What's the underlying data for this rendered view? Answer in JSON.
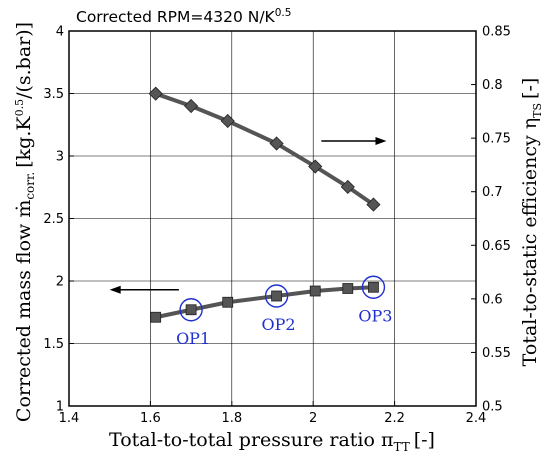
{
  "chart_data": {
    "type": "line",
    "title": "Corrected RPM=4320 N/K",
    "title_superscript": "0.5",
    "xlabel": "Total-to-total pressure ratio π",
    "xlabel_subscript": "TT",
    "xlabel_unit": "[-]",
    "ylabel_left": "Corrected mass flow ṁ",
    "ylabel_left_subscript": "corr.",
    "ylabel_left_unit_a": "[kg.K",
    "ylabel_left_unit_sup": "0.5",
    "ylabel_left_unit_b": "/(s.bar)",
    "ylabel_left_unit_c": "]",
    "ylabel_right": "Total-to-static efficiency η",
    "ylabel_right_subscript": "TS",
    "ylabel_right_unit": "[-]",
    "xlim": [
      1.4,
      2.4
    ],
    "ylim_left": [
      1,
      4
    ],
    "ylim_right": [
      0.5,
      0.85
    ],
    "x_ticks": [
      "1.4",
      "1.6",
      "1.8",
      "2",
      "2.2",
      "2.4"
    ],
    "y_left_ticks": [
      "1",
      "1.5",
      "2",
      "2.5",
      "3",
      "3.5",
      "4"
    ],
    "y_right_ticks": [
      "0.5",
      "0.55",
      "0.6",
      "0.65",
      "0.7",
      "0.75",
      "0.8",
      "0.85"
    ],
    "grid": true,
    "series": [
      {
        "axis": "left",
        "marker": "square",
        "color": "#555555",
        "x": [
          1.613,
          1.7,
          1.79,
          1.91,
          2.005,
          2.085,
          2.148
        ],
        "y": [
          1.71,
          1.77,
          1.83,
          1.88,
          1.92,
          1.94,
          1.95
        ]
      },
      {
        "axis": "right",
        "marker": "diamond",
        "color": "#555555",
        "x": [
          1.613,
          1.7,
          1.79,
          1.91,
          2.005,
          2.085,
          2.148
        ],
        "y": [
          0.7915,
          0.78,
          0.766,
          0.745,
          0.7235,
          0.7045,
          0.688
        ]
      }
    ],
    "annotations": [
      {
        "label": "OP1",
        "x": 1.7,
        "y": 1.77,
        "color": "#1f2fd0"
      },
      {
        "label": "OP2",
        "x": 1.91,
        "y": 1.88,
        "color": "#1f2fd0"
      },
      {
        "label": "OP3",
        "x": 2.148,
        "y": 1.95,
        "color": "#1f2fd0"
      }
    ],
    "arrows": [
      {
        "direction": "left",
        "axis": "left",
        "x_from": 1.67,
        "x_to": 1.5,
        "y": 1.93
      },
      {
        "direction": "right",
        "axis": "left",
        "x_from": 2.02,
        "x_to": 2.18,
        "y": 3.12
      }
    ]
  }
}
